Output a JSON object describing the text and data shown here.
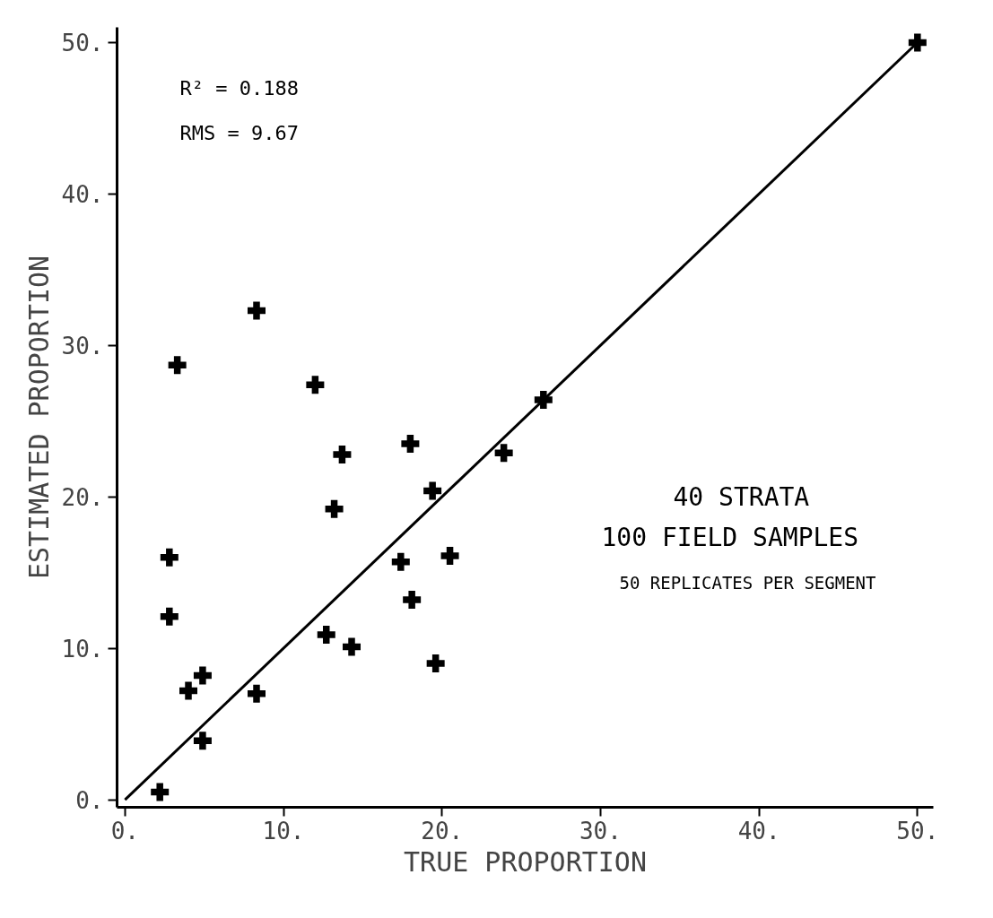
{
  "chart_data": {
    "type": "scatter",
    "xlabel": "TRUE PROPORTION",
    "ylabel": "ESTIMATED PROPORTION",
    "annotations": [
      "R² = 0.188",
      "RMS = 9.67",
      "40 STRATA",
      "100 FIELD SAMPLES",
      "50 REPLICATES PER SEGMENT"
    ],
    "series": [
      {
        "color": "#000000",
        "x": [
          3.3,
          12.0,
          13.7,
          18.0,
          19.4,
          13.2,
          2.8,
          17.4,
          20.5,
          18.1,
          2.8,
          12.7,
          14.3,
          19.6,
          4.9,
          4.0,
          8.3,
          4.9,
          8.3,
          26.4,
          23.9,
          2.2,
          50
        ],
        "values": [
          28.7,
          27.4,
          22.8,
          23.5,
          20.4,
          19.2,
          16.0,
          15.7,
          16.1,
          13.2,
          12.1,
          10.9,
          10.1,
          9.0,
          8.2,
          7.2,
          7.0,
          3.9,
          32.3,
          26.4,
          22.9,
          0.5,
          50
        ]
      },
      {
        "type": "line",
        "marker": "none",
        "color": "#000000",
        "x": [
          0,
          50
        ],
        "values": [
          0,
          50
        ]
      }
    ],
    "marker": "cross",
    "grid": false,
    "xlim": [
      -0.5,
      51
    ],
    "ylim": [
      -0.5,
      51
    ],
    "xticks": [
      {
        "value": 0,
        "label": "0."
      },
      {
        "value": 10,
        "label": "10."
      },
      {
        "value": 20,
        "label": "20."
      },
      {
        "value": 30,
        "label": "30."
      },
      {
        "value": 40,
        "label": "40."
      },
      {
        "value": 50,
        "label": "50."
      }
    ],
    "yticks": [
      {
        "value": 0,
        "label": "0."
      },
      {
        "value": 10,
        "label": "10."
      },
      {
        "value": 20,
        "label": "20."
      },
      {
        "value": 30,
        "label": "30."
      },
      {
        "value": 40,
        "label": "40."
      },
      {
        "value": 50,
        "label": "50."
      }
    ]
  }
}
